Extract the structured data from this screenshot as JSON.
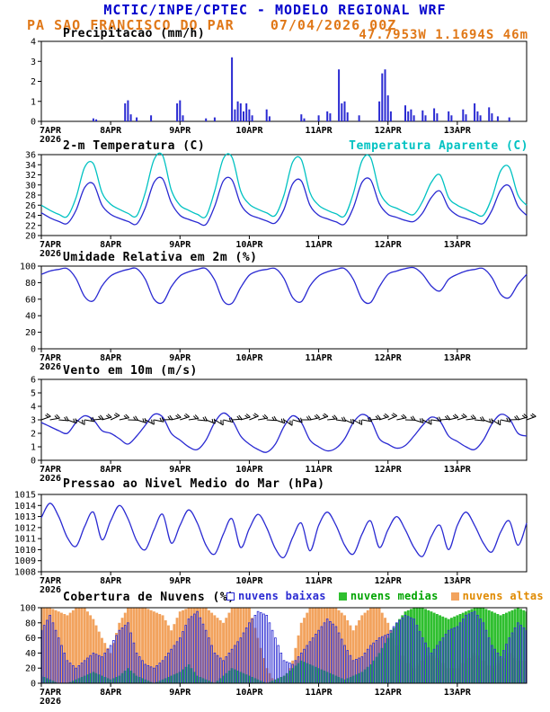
{
  "header": {
    "title": "MCTIC/INPE/CPTEC - MODELO REGIONAL WRF",
    "station_line": "PA SAO FRANCISCO DO PAR    07/04/2026 00Z",
    "coords_line": "47.7953W 1.1694S 46m"
  },
  "colors": {
    "blue": "#2a2ad2",
    "cyan": "#00c2c2",
    "green": "#2fbf2f",
    "orange": "#f2a35e",
    "title_blue": "#0000cc",
    "header_orange": "#e07818",
    "legend_green": "#00a400",
    "legend_orange": "#e08a00",
    "black": "#000000"
  },
  "time_axis": {
    "range_hours": [
      0,
      168
    ],
    "step_hours": 3,
    "tick_hours": [
      0,
      24,
      48,
      72,
      96,
      120,
      144
    ],
    "tick_labels": [
      "7APR",
      "8APR",
      "9APR",
      "10APR",
      "11APR",
      "12APR",
      "13APR"
    ],
    "year_label": "2026"
  },
  "panels": {
    "precip": {
      "title": "Precipitacao (mm/h)"
    },
    "temp": {
      "title": "2-m Temperatura (C)",
      "right_legend": "Temperatura Aparente (C)"
    },
    "rh": {
      "title": "Umidade Relativa em 2m (%)"
    },
    "wind": {
      "title": "Vento em 10m (m/s)"
    },
    "pressure": {
      "title": "Pressao ao Nivel Medio do Mar (hPa)"
    },
    "clouds": {
      "title": "Cobertura de Nuvens (%)",
      "legend": [
        {
          "label": "nuvens baixas",
          "color_key": "blue",
          "text_color_key": "blue",
          "style": "outline"
        },
        {
          "label": "nuvens medias",
          "color_key": "green",
          "text_color_key": "legend_green",
          "style": "fill"
        },
        {
          "label": "nuvens altas",
          "color_key": "orange",
          "text_color_key": "legend_orange",
          "style": "fill"
        }
      ]
    }
  },
  "chart_data": [
    {
      "id": "precip",
      "type": "bar",
      "title": "Precipitacao (mm/h)",
      "ylabel": "mm/h",
      "ylim": [
        0,
        4
      ],
      "yticks": [
        0,
        1,
        2,
        3,
        4
      ],
      "x_hours": [
        18,
        19,
        29,
        30,
        31,
        33,
        38,
        47,
        48,
        49,
        57,
        60,
        66,
        67,
        68,
        69,
        70,
        71,
        72,
        73,
        78,
        79,
        90,
        91,
        96,
        99,
        100,
        103,
        104,
        105,
        106,
        110,
        117,
        118,
        119,
        120,
        121,
        126,
        127,
        128,
        129,
        132,
        133,
        136,
        137,
        141,
        142,
        146,
        147,
        150,
        151,
        152,
        155,
        156,
        158,
        162
      ],
      "values": [
        0.15,
        0.1,
        0.9,
        1.05,
        0.35,
        0.2,
        0.3,
        0.9,
        1.05,
        0.3,
        0.15,
        0.2,
        3.2,
        0.6,
        1.0,
        0.9,
        0.5,
        0.9,
        0.6,
        0.3,
        0.6,
        0.25,
        0.35,
        0.15,
        0.3,
        0.5,
        0.4,
        2.6,
        0.9,
        1.0,
        0.45,
        0.3,
        1.0,
        2.4,
        2.6,
        1.3,
        0.5,
        0.8,
        0.5,
        0.6,
        0.3,
        0.55,
        0.3,
        0.65,
        0.4,
        0.5,
        0.3,
        0.6,
        0.35,
        0.9,
        0.5,
        0.3,
        0.7,
        0.4,
        0.25,
        0.2
      ]
    },
    {
      "id": "temp2m",
      "type": "line",
      "title": "2-m Temperatura (C)",
      "ylabel": "C",
      "ylim": [
        20,
        36
      ],
      "yticks": [
        20,
        22,
        24,
        26,
        28,
        30,
        32,
        34,
        36
      ],
      "series": [
        {
          "name": "2-m Temperatura (C)",
          "color_key": "blue",
          "values": [
            24.5,
            23.5,
            22.8,
            22.4,
            25.0,
            29.5,
            30.2,
            26.0,
            24.2,
            23.4,
            22.8,
            22.3,
            25.5,
            30.5,
            31.2,
            26.5,
            24.0,
            23.2,
            22.6,
            22.2,
            25.8,
            30.8,
            31.0,
            26.2,
            24.2,
            23.5,
            22.9,
            22.5,
            25.2,
            30.2,
            30.8,
            26.0,
            24.0,
            23.3,
            22.7,
            22.3,
            25.5,
            30.5,
            31.0,
            26.3,
            24.2,
            23.6,
            23.0,
            22.8,
            24.5,
            27.5,
            28.8,
            25.5,
            24.0,
            23.4,
            22.8,
            22.4,
            25.0,
            29.0,
            29.8,
            25.8,
            24.0
          ]
        },
        {
          "name": "Temperatura Aparente (C)",
          "color_key": "cyan",
          "values": [
            26.0,
            25.0,
            24.2,
            23.8,
            27.5,
            33.5,
            34.2,
            28.5,
            26.2,
            25.2,
            24.4,
            23.9,
            28.5,
            35.0,
            35.8,
            29.0,
            26.0,
            25.0,
            24.2,
            23.8,
            28.8,
            35.2,
            35.5,
            28.8,
            26.2,
            25.2,
            24.5,
            24.0,
            28.0,
            34.5,
            35.0,
            28.5,
            26.0,
            25.0,
            24.3,
            23.9,
            28.3,
            34.8,
            35.4,
            28.8,
            26.2,
            25.4,
            24.6,
            24.2,
            26.8,
            30.5,
            32.0,
            27.5,
            26.0,
            25.2,
            24.4,
            24.0,
            27.5,
            32.8,
            33.5,
            28.0,
            26.0
          ]
        }
      ]
    },
    {
      "id": "rh2m",
      "type": "line",
      "title": "Umidade Relativa em 2m (%)",
      "ylabel": "%",
      "ylim": [
        0,
        100
      ],
      "yticks": [
        0,
        20,
        40,
        60,
        80,
        100
      ],
      "series": [
        {
          "name": "Umidade Relativa em 2m (%)",
          "color_key": "blue",
          "values": [
            90,
            94,
            96,
            97,
            85,
            63,
            58,
            76,
            88,
            93,
            96,
            97,
            84,
            60,
            56,
            75,
            88,
            93,
            96,
            97,
            83,
            58,
            55,
            74,
            89,
            94,
            96,
            97,
            85,
            62,
            57,
            76,
            88,
            93,
            96,
            97,
            84,
            60,
            56,
            75,
            90,
            94,
            97,
            98,
            90,
            76,
            70,
            84,
            90,
            94,
            96,
            97,
            86,
            66,
            62,
            78,
            90
          ]
        }
      ]
    },
    {
      "id": "wind10m",
      "type": "line",
      "title": "Vento em 10m (m/s)",
      "ylabel": "m/s",
      "ylim": [
        0,
        6
      ],
      "yticks": [
        0,
        1,
        2,
        3,
        4,
        5,
        6
      ],
      "barb_y_value": 3,
      "barb_dir_deg": [
        70,
        80,
        95,
        110,
        120,
        100,
        85,
        75,
        65,
        78,
        92,
        108,
        118,
        102,
        88,
        76,
        72,
        82,
        96,
        112,
        122,
        104,
        86,
        74,
        68,
        80,
        94,
        110,
        125,
        105,
        90,
        78,
        70,
        84,
        98,
        114,
        120,
        100,
        84,
        72,
        66,
        78,
        92,
        108,
        118,
        98,
        86,
        76,
        72,
        82,
        96,
        110,
        122,
        102,
        88,
        74,
        70
      ],
      "series": [
        {
          "name": "Vento em 10m (m/s)",
          "color_key": "blue",
          "values": [
            2.8,
            2.5,
            2.2,
            2.0,
            2.8,
            3.3,
            3.0,
            2.2,
            2.0,
            1.6,
            1.2,
            1.8,
            2.6,
            3.4,
            3.2,
            2.0,
            1.5,
            1.0,
            0.8,
            1.5,
            2.8,
            3.5,
            3.0,
            1.8,
            1.2,
            0.8,
            0.6,
            1.2,
            2.5,
            3.3,
            2.8,
            1.5,
            1.0,
            0.7,
            0.9,
            1.6,
            2.8,
            3.4,
            3.0,
            1.6,
            1.2,
            0.9,
            1.1,
            1.8,
            2.6,
            3.2,
            2.9,
            1.8,
            1.4,
            1.0,
            0.8,
            1.5,
            2.7,
            3.4,
            3.1,
            2.0,
            1.8
          ]
        }
      ]
    },
    {
      "id": "pressure",
      "type": "line",
      "title": "Pressao ao Nivel Medio do Mar (hPa)",
      "ylabel": "hPa",
      "ylim": [
        1008,
        1015
      ],
      "yticks": [
        1008,
        1009,
        1010,
        1011,
        1012,
        1013,
        1014,
        1015
      ],
      "series": [
        {
          "name": "Pressao ao Nivel Medio do Mar (hPa)",
          "color_key": "blue",
          "values": [
            1012.9,
            1014.2,
            1013.0,
            1011.1,
            1010.3,
            1012.1,
            1013.4,
            1010.9,
            1012.6,
            1014.0,
            1012.8,
            1010.8,
            1010.0,
            1011.8,
            1013.2,
            1010.6,
            1012.2,
            1013.6,
            1012.4,
            1010.4,
            1009.6,
            1011.4,
            1012.8,
            1010.2,
            1011.9,
            1013.2,
            1012.0,
            1010.1,
            1009.3,
            1011.1,
            1012.4,
            1009.9,
            1012.2,
            1013.4,
            1012.2,
            1010.4,
            1009.6,
            1011.4,
            1012.6,
            1010.2,
            1011.8,
            1013.0,
            1011.8,
            1010.2,
            1009.4,
            1011.2,
            1012.2,
            1010.0,
            1012.2,
            1013.4,
            1012.2,
            1010.6,
            1009.8,
            1011.6,
            1012.6,
            1010.4,
            1012.4
          ]
        }
      ]
    },
    {
      "id": "clouds",
      "type": "bar",
      "title": "Cobertura de Nuvens (%)",
      "ylabel": "%",
      "ylim": [
        0,
        100
      ],
      "yticks": [
        0,
        20,
        40,
        60,
        80,
        100
      ],
      "series": [
        {
          "name": "nuvens baixas",
          "color_key": "blue",
          "style": "outline",
          "values": [
            70,
            90,
            60,
            30,
            20,
            30,
            40,
            35,
            50,
            70,
            80,
            40,
            25,
            20,
            30,
            45,
            60,
            85,
            95,
            70,
            40,
            30,
            45,
            60,
            80,
            95,
            90,
            60,
            30,
            25,
            40,
            55,
            70,
            85,
            75,
            50,
            30,
            35,
            50,
            60,
            65,
            80,
            90,
            85,
            60,
            40,
            55,
            70,
            75,
            90,
            95,
            80,
            50,
            35,
            60,
            80,
            70
          ]
        },
        {
          "name": "nuvens medias",
          "color_key": "green",
          "style": "fill",
          "values": [
            10,
            5,
            0,
            0,
            5,
            10,
            15,
            10,
            5,
            10,
            20,
            10,
            5,
            0,
            5,
            10,
            15,
            25,
            10,
            5,
            0,
            10,
            20,
            15,
            10,
            5,
            0,
            5,
            10,
            20,
            30,
            25,
            20,
            15,
            10,
            5,
            10,
            15,
            25,
            40,
            60,
            80,
            95,
            100,
            100,
            95,
            90,
            85,
            90,
            95,
            100,
            100,
            95,
            90,
            95,
            100,
            95
          ]
        },
        {
          "name": "nuvens altas",
          "color_key": "orange",
          "style": "fill",
          "values": [
            100,
            100,
            95,
            90,
            100,
            100,
            85,
            60,
            40,
            80,
            100,
            100,
            100,
            95,
            90,
            70,
            95,
            100,
            100,
            100,
            90,
            80,
            100,
            100,
            100,
            60,
            20,
            0,
            0,
            30,
            80,
            100,
            100,
            100,
            100,
            90,
            70,
            90,
            100,
            100,
            80,
            50,
            30,
            20,
            30,
            40,
            30,
            20,
            20,
            30,
            40,
            30,
            20,
            30,
            40,
            30,
            30
          ]
        }
      ]
    }
  ]
}
